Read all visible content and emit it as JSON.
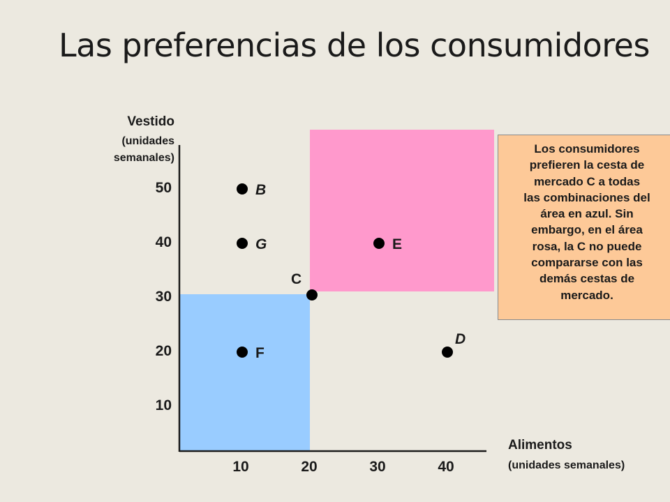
{
  "title": "Las preferencias de los consumidores",
  "y_axis": {
    "title": "Vestido",
    "subtitle_1": "(unidades",
    "subtitle_2": "semanales)"
  },
  "x_axis": {
    "title": "Alimentos",
    "subtitle": "(unidades semanales)"
  },
  "note": {
    "lines": [
      "Los consumidores",
      "prefieren la cesta de",
      "mercado C a todas",
      "las combinaciones del",
      "área en azul. Sin",
      "embargo, en el área",
      "rosa, la C no puede",
      "compararse con las",
      "demás cestas de",
      "mercado."
    ]
  },
  "colors": {
    "blue_region": "#99ccff",
    "pink_region": "#ff99cc",
    "note_background": "#fdc998",
    "background": "#ece9e0"
  },
  "chart_data": {
    "type": "scatter",
    "x_ticks": [
      10,
      20,
      30,
      40
    ],
    "y_ticks": [
      10,
      20,
      30,
      40,
      50
    ],
    "points": [
      {
        "label": "B",
        "x": 10,
        "y": 50
      },
      {
        "label": "G",
        "x": 10,
        "y": 40
      },
      {
        "label": "E",
        "x": 30,
        "y": 40
      },
      {
        "label": "C",
        "x": 20,
        "y": 30
      },
      {
        "label": "F",
        "x": 10,
        "y": 20
      },
      {
        "label": "D",
        "x": 40,
        "y": 20
      }
    ],
    "regions": [
      {
        "name": "blue",
        "color": "#99ccff",
        "x_range": [
          0,
          20
        ],
        "y_range": [
          0,
          30
        ]
      },
      {
        "name": "pink",
        "color": "#ff99cc",
        "x_range": [
          20,
          45
        ],
        "y_range": [
          30,
          60
        ]
      }
    ],
    "xlim": [
      0,
      45
    ],
    "ylim": [
      0,
      55
    ]
  }
}
